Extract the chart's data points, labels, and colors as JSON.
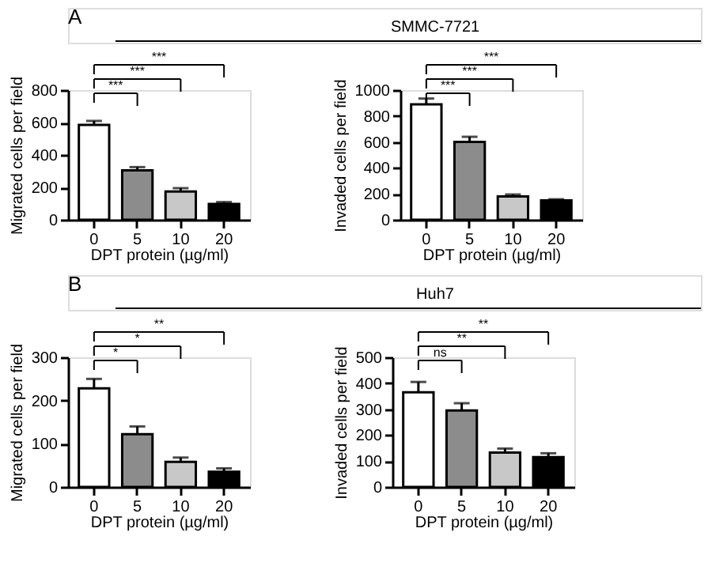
{
  "chart_data": [
    {
      "type": "other",
      "title": "SMMC-7721",
      "annotations": [
        "A"
      ]
    },
    {
      "type": "bar",
      "xlabel": "DPT protein (µg/ml)",
      "ylabel": "Migrated cells per field",
      "categories": [
        "0",
        "5",
        "10",
        "20"
      ],
      "values": [
        585,
        305,
        175,
        97
      ],
      "errors": [
        25,
        20,
        20,
        12
      ],
      "colors": [
        "#ffffff",
        "#8c8c8c",
        "#c8c8c8",
        "#000000"
      ],
      "ylim": [
        0,
        800
      ],
      "yticks": [
        0,
        200,
        400,
        600,
        800
      ],
      "annotations": [
        "***",
        "***",
        "***"
      ]
    },
    {
      "type": "bar",
      "xlabel": "DPT protein (µg/ml)",
      "ylabel": "Invaded cells per field",
      "categories": [
        "0",
        "5",
        "10",
        "20"
      ],
      "values": [
        890,
        600,
        180,
        150
      ],
      "errors": [
        45,
        40,
        15,
        8
      ],
      "colors": [
        "#ffffff",
        "#8c8c8c",
        "#c8c8c8",
        "#000000"
      ],
      "ylim": [
        0,
        1000
      ],
      "yticks": [
        0,
        200,
        400,
        600,
        800,
        1000
      ],
      "annotations": [
        "***",
        "***",
        "***"
      ]
    },
    {
      "type": "other",
      "title": "Huh7",
      "annotations": [
        "B"
      ]
    },
    {
      "type": "bar",
      "xlabel": "DPT protein (µg/ml)",
      "ylabel": "Migrated cells per field",
      "categories": [
        "0",
        "5",
        "10",
        "20"
      ],
      "values": [
        228,
        122,
        58,
        35
      ],
      "errors": [
        22,
        18,
        10,
        8
      ],
      "colors": [
        "#ffffff",
        "#8c8c8c",
        "#c8c8c8",
        "#000000"
      ],
      "ylim": [
        0,
        300
      ],
      "yticks": [
        0,
        100,
        200,
        300
      ],
      "annotations": [
        "*",
        "*",
        "**"
      ]
    },
    {
      "type": "bar",
      "xlabel": "DPT protein (µg/ml)",
      "ylabel": "Invaded cells per field",
      "categories": [
        "0",
        "5",
        "10",
        "20"
      ],
      "values": [
        365,
        295,
        133,
        115
      ],
      "errors": [
        40,
        28,
        15,
        15
      ],
      "colors": [
        "#ffffff",
        "#8c8c8c",
        "#c8c8c8",
        "#000000"
      ],
      "ylim": [
        0,
        500
      ],
      "yticks": [
        0,
        100,
        200,
        300,
        400,
        500
      ],
      "annotations": [
        "ns",
        "**",
        "**"
      ]
    }
  ]
}
